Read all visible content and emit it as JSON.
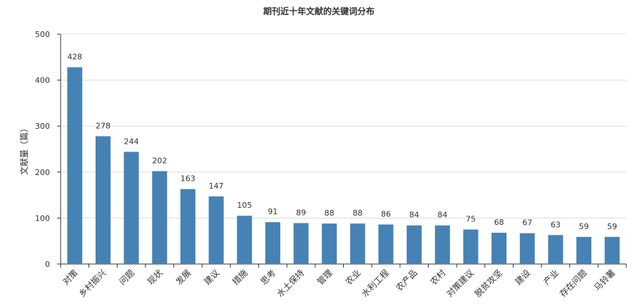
{
  "chart_data": {
    "type": "bar",
    "title": "期刊近十年文献的关键词分布",
    "xlabel": "",
    "ylabel": "文献量（篇）",
    "ylim": [
      0,
      500
    ],
    "yticks": [
      0,
      100,
      200,
      300,
      400,
      500
    ],
    "grid": true,
    "legend": "none",
    "bar_color": "#4682b4",
    "categories": [
      "对策",
      "乡村振兴",
      "问题",
      "现状",
      "发展",
      "建议",
      "措施",
      "思考",
      "水土保持",
      "管理",
      "农业",
      "水利工程",
      "农产品",
      "农村",
      "对策建议",
      "脱贫攻坚",
      "建设",
      "产业",
      "存在问题",
      "马铃薯"
    ],
    "values": [
      428,
      278,
      244,
      202,
      163,
      147,
      105,
      91,
      89,
      88,
      88,
      86,
      84,
      84,
      75,
      68,
      67,
      63,
      59,
      59
    ]
  }
}
